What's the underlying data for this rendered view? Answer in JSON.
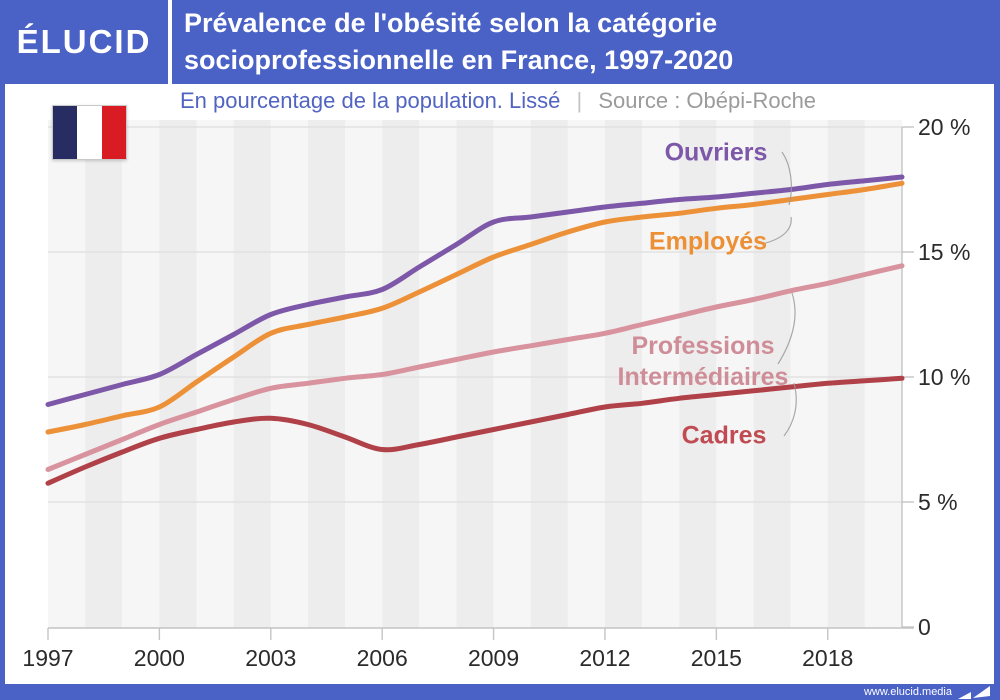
{
  "header": {
    "logo": "ÉLUCID",
    "title_line1": "Prévalence de l'obésité selon la catégorie",
    "title_line2": "socioprofessionnelle en France, 1997-2020"
  },
  "subtitle": {
    "description": "En pourcentage de la population. Lissé",
    "separator": "|",
    "source": "Source : Obépi-Roche"
  },
  "footer": {
    "url": "www.elucid.media"
  },
  "flag": {
    "band_colors": [
      "#272c63",
      "#ffffff",
      "#d91c23"
    ]
  },
  "colors": {
    "brand_blue": "#4a61c6",
    "grid": "#dedede",
    "axis": "#c4c4c4",
    "stripe_light": "#f6f6f6",
    "stripe_dark": "#ededed",
    "axis_text": "#2b2b2b"
  },
  "chart_data": {
    "type": "line",
    "title": "Prévalence de l'obésité selon la catégorie socioprofessionnelle en France, 1997-2020",
    "subtitle": "En pourcentage de la population. Lissé",
    "source": "Obépi-Roche",
    "x": [
      1997,
      1998,
      1999,
      2000,
      2001,
      2002,
      2003,
      2004,
      2005,
      2006,
      2007,
      2008,
      2009,
      2010,
      2011,
      2012,
      2013,
      2014,
      2015,
      2016,
      2017,
      2018,
      2019,
      2020
    ],
    "x_range": [
      1997,
      2020
    ],
    "xticks": [
      1997,
      2000,
      2003,
      2006,
      2009,
      2012,
      2015,
      2018
    ],
    "ylim": [
      0,
      20
    ],
    "yticks": [
      0,
      5,
      10,
      15,
      20
    ],
    "ytick_labels": [
      "0",
      "5 %",
      "10 %",
      "15 %",
      "20 %"
    ],
    "grid": true,
    "legend_position": "inline-labels",
    "series": [
      {
        "name": "Ouvriers",
        "label_lines": [
          "Ouvriers"
        ],
        "color": "#7d57a8",
        "label_color": "#7d57a8",
        "values": [
          8.9,
          9.3,
          9.7,
          10.1,
          10.9,
          11.7,
          12.5,
          12.9,
          13.2,
          13.5,
          14.4,
          15.3,
          16.2,
          16.4,
          16.6,
          16.8,
          16.95,
          17.1,
          17.2,
          17.35,
          17.5,
          17.7,
          17.85,
          18.0
        ]
      },
      {
        "name": "Employés",
        "label_lines": [
          "Employés"
        ],
        "color": "#ec9138",
        "label_color": "#ec8f35",
        "values": [
          7.8,
          8.1,
          8.45,
          8.8,
          9.8,
          10.8,
          11.75,
          12.1,
          12.4,
          12.75,
          13.4,
          14.1,
          14.8,
          15.3,
          15.8,
          16.2,
          16.4,
          16.55,
          16.75,
          16.9,
          17.1,
          17.3,
          17.5,
          17.75
        ]
      },
      {
        "name": "Professions Intermédiaires",
        "label_lines": [
          "Professions",
          "Intermédiaires"
        ],
        "color": "#d8939e",
        "label_color": "#cf8d97",
        "values": [
          6.3,
          6.9,
          7.5,
          8.1,
          8.6,
          9.1,
          9.55,
          9.75,
          9.95,
          10.1,
          10.4,
          10.7,
          11.0,
          11.25,
          11.5,
          11.75,
          12.1,
          12.45,
          12.8,
          13.1,
          13.45,
          13.75,
          14.1,
          14.45
        ]
      },
      {
        "name": "Cadres",
        "label_lines": [
          "Cadres"
        ],
        "color": "#b04148",
        "label_color": "#c04b52",
        "values": [
          5.75,
          6.4,
          7.0,
          7.55,
          7.9,
          8.2,
          8.35,
          8.1,
          7.6,
          7.1,
          7.3,
          7.6,
          7.9,
          8.2,
          8.5,
          8.8,
          8.95,
          9.15,
          9.3,
          9.45,
          9.6,
          9.75,
          9.85,
          9.95
        ]
      }
    ]
  }
}
